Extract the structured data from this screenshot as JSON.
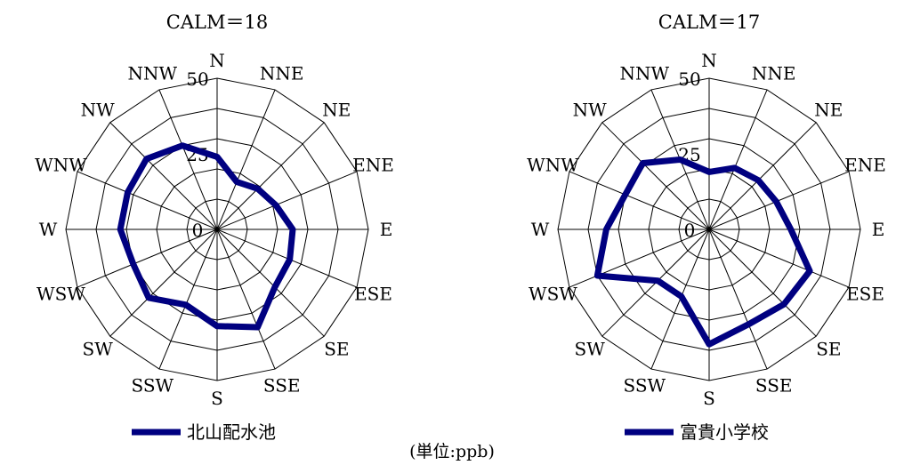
{
  "unit_note": "(単位:ppb)",
  "chart_data": [
    {
      "type": "radar",
      "title": "CALM＝18",
      "directions": [
        "N",
        "NNE",
        "NE",
        "ENE",
        "E",
        "ESE",
        "SE",
        "SSE",
        "S",
        "SSW",
        "SW",
        "WSW",
        "W",
        "WNW",
        "NW",
        "NNW"
      ],
      "rmax": 50,
      "ticks": [
        0,
        25,
        50
      ],
      "tick_labels": [
        "0",
        "25",
        "50"
      ],
      "grid": true,
      "legend_position": "bottom",
      "series": [
        {
          "name": "北山配水池",
          "color": "#000080",
          "values": [
            24,
            17,
            19,
            21,
            25,
            26,
            27,
            35,
            32,
            27,
            32,
            30,
            32,
            32,
            33,
            30
          ]
        }
      ]
    },
    {
      "type": "radar",
      "title": "CALM＝17",
      "directions": [
        "N",
        "NNE",
        "NE",
        "ENE",
        "E",
        "ESE",
        "SE",
        "SSE",
        "S",
        "SSW",
        "SW",
        "WSW",
        "W",
        "WNW",
        "NW",
        "NNW"
      ],
      "rmax": 50,
      "ticks": [
        0,
        25,
        50
      ],
      "tick_labels": [
        "0",
        "25",
        "50"
      ],
      "grid": true,
      "legend_position": "bottom",
      "series": [
        {
          "name": "富貴小学校",
          "color": "#000080",
          "values": [
            19,
            22,
            23,
            24,
            27,
            36,
            35,
            34,
            38,
            24,
            24,
            40,
            34,
            30,
            31,
            25
          ]
        }
      ]
    }
  ]
}
